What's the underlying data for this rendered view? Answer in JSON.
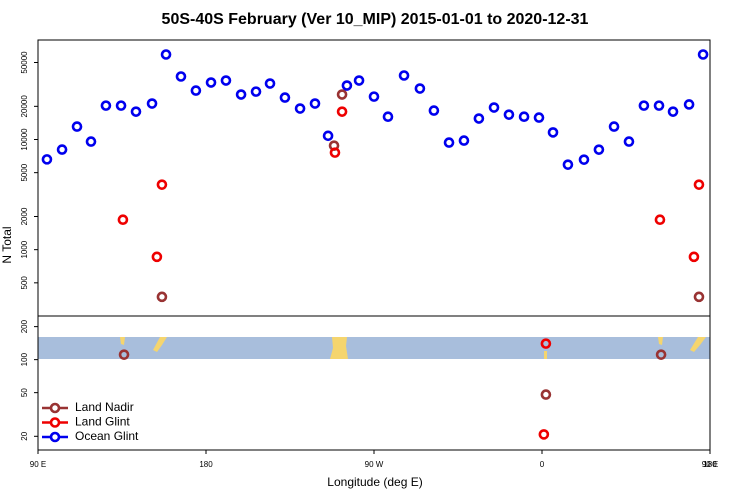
{
  "chart_data": [
    {
      "type": "scatter",
      "title": "50S-40S February (Ver 10_MIP)   2015-01-01 to 2020-12-31",
      "ylabel": "N Total",
      "log": true,
      "xlim": [
        90,
        450
      ],
      "ylim": [
        250,
        80000
      ],
      "yticks": [
        500,
        1000,
        2000,
        5000,
        10000,
        20000,
        50000
      ],
      "series": [
        {
          "color": "#993333",
          "x": [
            156.4,
            248.6,
            252.9,
            444.1
          ],
          "values": [
            373,
            8790,
            25600,
            373
          ]
        },
        {
          "color": "#ee0000",
          "x": [
            135.5,
            153.7,
            156.4,
            249.1,
            252.9,
            423.2,
            441.4,
            444.1
          ],
          "values": [
            1870,
            861,
            3890,
            7600,
            17900,
            1870,
            861,
            3890
          ]
        },
        {
          "color": "#0000ee",
          "x": [
            94.8,
            102.9,
            110.9,
            118.4,
            126.4,
            134.5,
            142.5,
            151.1,
            158.6,
            166.6,
            174.6,
            182.7,
            190.7,
            198.8,
            206.8,
            214.3,
            222.3,
            230.4,
            238.4,
            245.4,
            255.5,
            262.0,
            270.0,
            277.5,
            286.1,
            294.6,
            302.1,
            310.2,
            318.2,
            326.2,
            334.3,
            342.3,
            350.4,
            358.4,
            365.9,
            373.9,
            382.5,
            390.5,
            398.6,
            406.6,
            414.6,
            422.7,
            430.2,
            438.8,
            446.3
          ],
          "values": [
            6600,
            8100,
            13100,
            9570,
            20300,
            20300,
            17900,
            21200,
            59100,
            37300,
            27800,
            32900,
            34300,
            25600,
            27200,
            32200,
            24000,
            19100,
            21200,
            10800,
            30900,
            34300,
            24500,
            16100,
            38100,
            29000,
            18300,
            9370,
            9770,
            15500,
            19500,
            16800,
            16100,
            15800,
            11600,
            5910,
            6560,
            8090,
            13100,
            9570,
            20300,
            20300,
            17900,
            20800,
            59100
          ]
        }
      ]
    },
    {
      "type": "scatter",
      "xlabel": "Longitude (deg E)",
      "log": true,
      "legend": "lower left",
      "xlim": [
        90,
        450
      ],
      "ylim": [
        15,
        250
      ],
      "yticks": [
        20,
        50,
        100,
        200
      ],
      "xticks": [
        {
          "value": 90,
          "label": "90 E"
        },
        {
          "value": 180,
          "label": "180"
        },
        {
          "value": 270,
          "label": "90 W"
        },
        {
          "value": 360,
          "label": "0"
        },
        {
          "value": 450,
          "label": "90 E"
        },
        {
          "value": 540,
          "label": "180"
        }
      ],
      "series": [
        {
          "name": "Land Nadir",
          "color": "#993333",
          "x": [
            136.1,
            423.8,
            362.1
          ],
          "values": [
            111,
            111,
            48
          ]
        },
        {
          "name": "Land Glint",
          "color": "#ee0000",
          "x": [
            362.1,
            361.0
          ],
          "values": [
            140,
            20.8
          ]
        },
        {
          "name": "Ocean Glint",
          "color": "#0000ee",
          "x": [],
          "values": []
        }
      ]
    }
  ]
}
